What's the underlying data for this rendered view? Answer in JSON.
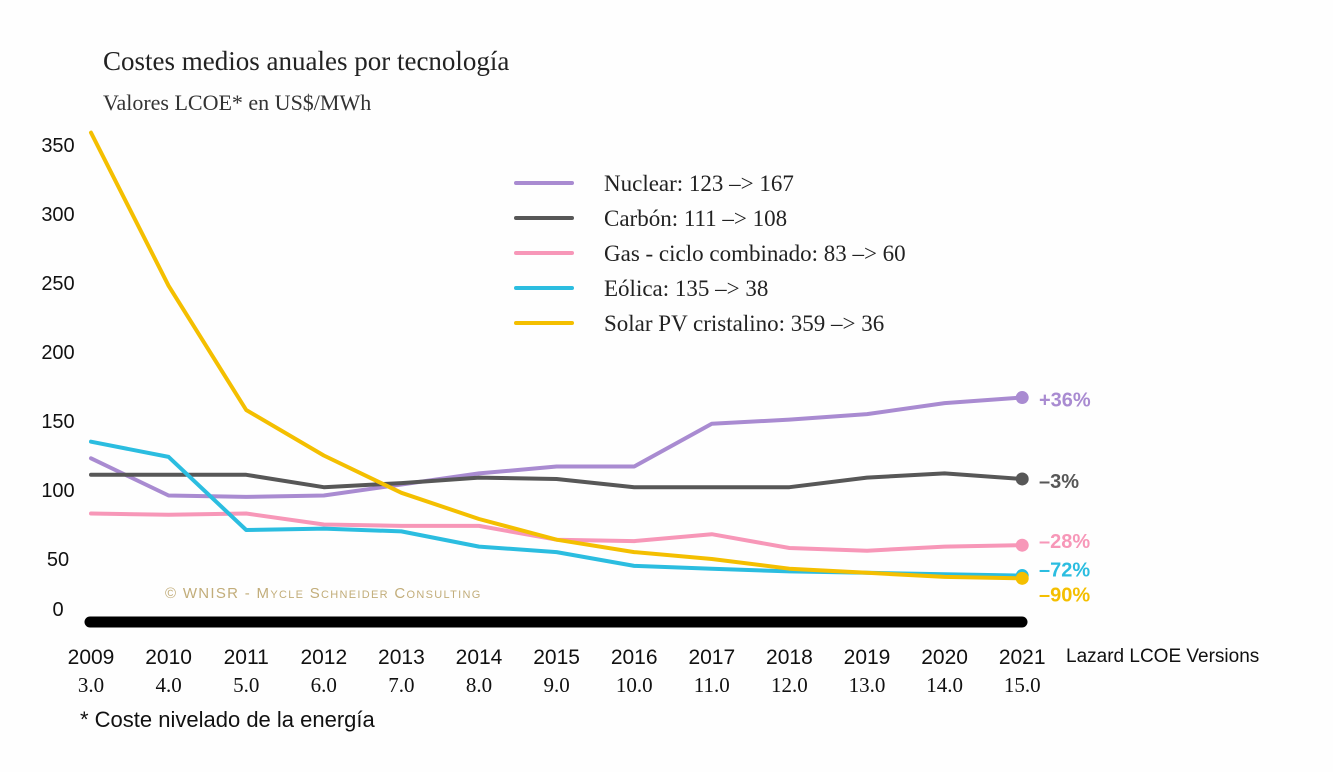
{
  "chart_data": {
    "type": "line",
    "title": "Costes medios anuales por tecnología",
    "subtitle": "Valores LCOE* en US$/MWh",
    "footnote": "* Coste nivelado de la energía",
    "watermark": "© WNISR - Mycle Schneider Consulting",
    "x_axis_label": "Lazard LCOE Versions",
    "x": [
      "2009",
      "2010",
      "2011",
      "2012",
      "2013",
      "2014",
      "2015",
      "2016",
      "2017",
      "2018",
      "2019",
      "2020",
      "2021"
    ],
    "x_versions": [
      "3.0",
      "4.0",
      "5.0",
      "6.0",
      "7.0",
      "8.0",
      "9.0",
      "10.0",
      "11.0",
      "12.0",
      "13.0",
      "14.0",
      "15.0"
    ],
    "yticks": [
      "0",
      "50",
      "100",
      "150",
      "200",
      "250",
      "300",
      "350"
    ],
    "ylim": [
      0,
      350
    ],
    "grid": false,
    "legend_position": "top-center",
    "series": [
      {
        "name": "Nuclear: 123 –> 167",
        "color": "#a98bd1",
        "values": [
          123,
          96,
          95,
          96,
          104,
          112,
          117,
          117,
          148,
          151,
          155,
          163,
          167
        ],
        "change_label": "+36%"
      },
      {
        "name": "Carbón: 111 –> 108",
        "color": "#575757",
        "values": [
          111,
          111,
          111,
          102,
          105,
          109,
          108,
          102,
          102,
          102,
          109,
          112,
          108
        ],
        "change_label": "–3%"
      },
      {
        "name": "Gas - ciclo combinado: 83 –> 60",
        "color": "#f797b8",
        "values": [
          83,
          82,
          83,
          75,
          74,
          74,
          64,
          63,
          68,
          58,
          56,
          59,
          60
        ],
        "change_label": "–28%"
      },
      {
        "name": "Eólica: 135 –> 38",
        "color": "#2bbde0",
        "values": [
          135,
          124,
          71,
          72,
          70,
          59,
          55,
          45,
          43,
          41,
          40,
          39,
          38
        ],
        "change_label": "–72%"
      },
      {
        "name": "Solar PV cristalino: 359 –> 36",
        "color": "#f4bf00",
        "values": [
          359,
          248,
          158,
          125,
          98,
          79,
          64,
          55,
          50,
          43,
          40,
          37,
          36
        ],
        "change_label": "–90%"
      }
    ]
  }
}
